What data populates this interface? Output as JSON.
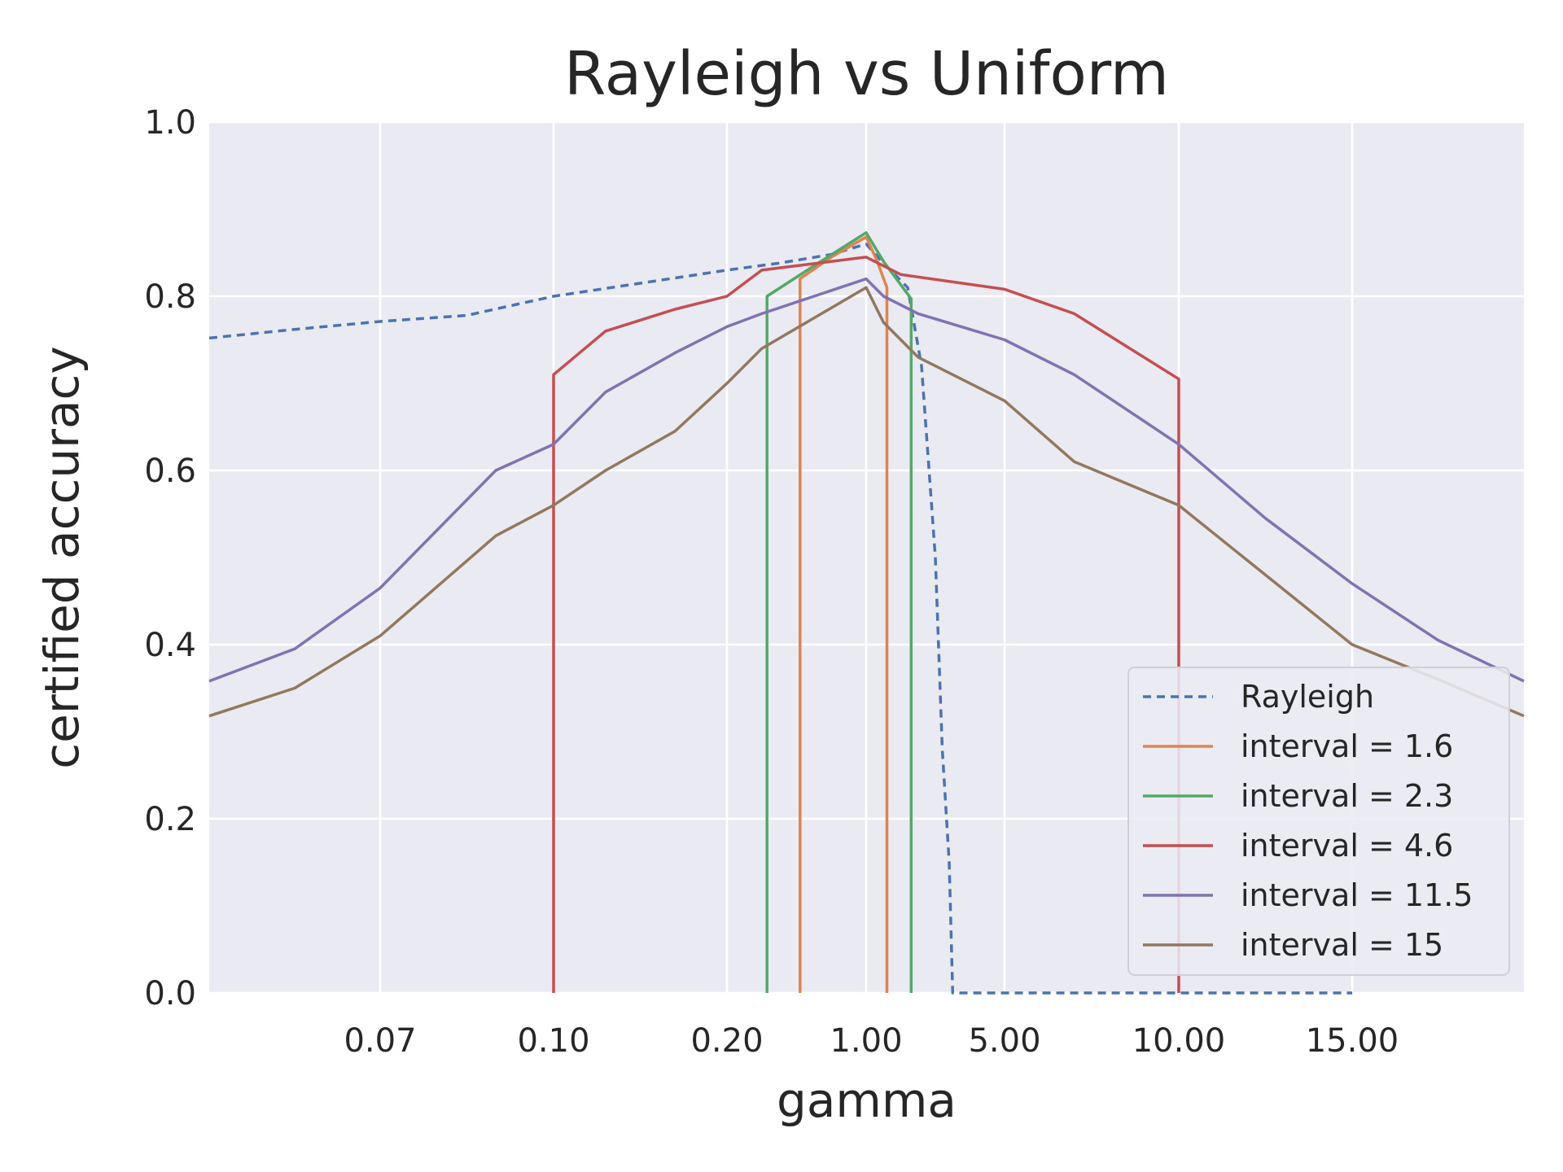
{
  "chart_data": {
    "type": "line",
    "title": "Rayleigh vs Uniform",
    "xlabel": "gamma",
    "ylabel": "certified accuracy",
    "x_ticks": [
      "0.07",
      "0.10",
      "0.20",
      "1.00",
      "5.00",
      "10.00",
      "15.00"
    ],
    "y_ticks": [
      "0.0",
      "0.2",
      "0.4",
      "0.6",
      "0.8",
      "1.0"
    ],
    "ylim": [
      0,
      1
    ],
    "x_scale": "categorical gamma axis with ticks at 0.07, 0.10, 0.20, 1.00, 5.00, 10.00, 15.00",
    "grid": true,
    "legend_position": "bottom-right",
    "background": "#eaeaf2",
    "series": [
      {
        "name": "Rayleigh",
        "style": "dashed",
        "color": "#4c72b0",
        "points": [
          [
            "0.05",
            0.752
          ],
          [
            "0.06",
            0.762
          ],
          [
            "0.07",
            0.771
          ],
          [
            "0.085",
            0.778
          ],
          [
            "0.10",
            0.8
          ],
          [
            "0.15",
            0.815
          ],
          [
            "0.20",
            0.83
          ],
          [
            "0.50",
            0.838
          ],
          [
            "0.80",
            0.848
          ],
          [
            "1.00",
            0.86
          ],
          [
            "1.50",
            0.838
          ],
          [
            "2.20",
            0.81
          ],
          [
            "2.60",
            0.72
          ],
          [
            "3.00",
            0.5
          ],
          [
            "3.20",
            0.28
          ],
          [
            "3.40",
            0.15
          ],
          [
            "3.50",
            0.0
          ],
          [
            "15.00",
            0.0
          ]
        ]
      },
      {
        "name": "interval = 1.6",
        "style": "solid",
        "color": "#dd8452",
        "points": [
          [
            "0.62",
            0.0
          ],
          [
            "0.62",
            0.82
          ],
          [
            "0.80",
            0.845
          ],
          [
            "1.00",
            0.868
          ],
          [
            "1.30",
            0.842
          ],
          [
            "1.60",
            0.81
          ],
          [
            "1.60",
            0.0
          ]
        ]
      },
      {
        "name": "interval = 2.3",
        "style": "solid",
        "color": "#55a868",
        "points": [
          [
            "0.43",
            0.0
          ],
          [
            "0.43",
            0.8
          ],
          [
            "0.70",
            0.835
          ],
          [
            "1.00",
            0.873
          ],
          [
            "1.50",
            0.84
          ],
          [
            "2.30",
            0.797
          ],
          [
            "2.30",
            0.0
          ]
        ]
      },
      {
        "name": "interval = 4.6",
        "style": "solid",
        "color": "#c44e52",
        "points": [
          [
            "0.10",
            0.0
          ],
          [
            "0.10",
            0.71
          ],
          [
            "0.13",
            0.76
          ],
          [
            "0.17",
            0.785
          ],
          [
            "0.20",
            0.8
          ],
          [
            "0.40",
            0.83
          ],
          [
            "1.00",
            0.845
          ],
          [
            "2.00",
            0.825
          ],
          [
            "5.00",
            0.808
          ],
          [
            "7.00",
            0.78
          ],
          [
            "10.00",
            0.705
          ],
          [
            "10.00",
            0.0
          ]
        ]
      },
      {
        "name": "interval = 11.5",
        "style": "solid",
        "color": "#8172b2",
        "points": [
          [
            "0.05",
            0.358
          ],
          [
            "0.06",
            0.395
          ],
          [
            "0.07",
            0.465
          ],
          [
            "0.09",
            0.6
          ],
          [
            "0.10",
            0.63
          ],
          [
            "0.13",
            0.69
          ],
          [
            "0.17",
            0.735
          ],
          [
            "0.20",
            0.765
          ],
          [
            "0.40",
            0.78
          ],
          [
            "1.00",
            0.82
          ],
          [
            "1.50",
            0.8
          ],
          [
            "2.50",
            0.78
          ],
          [
            "5.00",
            0.75
          ],
          [
            "7.00",
            0.71
          ],
          [
            "10.00",
            0.63
          ],
          [
            "12.50",
            0.545
          ],
          [
            "15.00",
            0.47
          ],
          [
            "17.50",
            0.405
          ],
          [
            "20.00",
            0.358
          ]
        ]
      },
      {
        "name": "interval = 15",
        "style": "solid",
        "color": "#937860",
        "points": [
          [
            "0.05",
            0.318
          ],
          [
            "0.06",
            0.35
          ],
          [
            "0.07",
            0.41
          ],
          [
            "0.09",
            0.525
          ],
          [
            "0.10",
            0.56
          ],
          [
            "0.13",
            0.6
          ],
          [
            "0.17",
            0.645
          ],
          [
            "0.20",
            0.7
          ],
          [
            "0.40",
            0.74
          ],
          [
            "1.00",
            0.81
          ],
          [
            "1.50",
            0.77
          ],
          [
            "2.50",
            0.73
          ],
          [
            "5.00",
            0.68
          ],
          [
            "7.00",
            0.61
          ],
          [
            "10.00",
            0.56
          ],
          [
            "12.50",
            0.48
          ],
          [
            "15.00",
            0.4
          ],
          [
            "17.50",
            0.36
          ],
          [
            "20.00",
            0.318
          ]
        ]
      }
    ]
  }
}
